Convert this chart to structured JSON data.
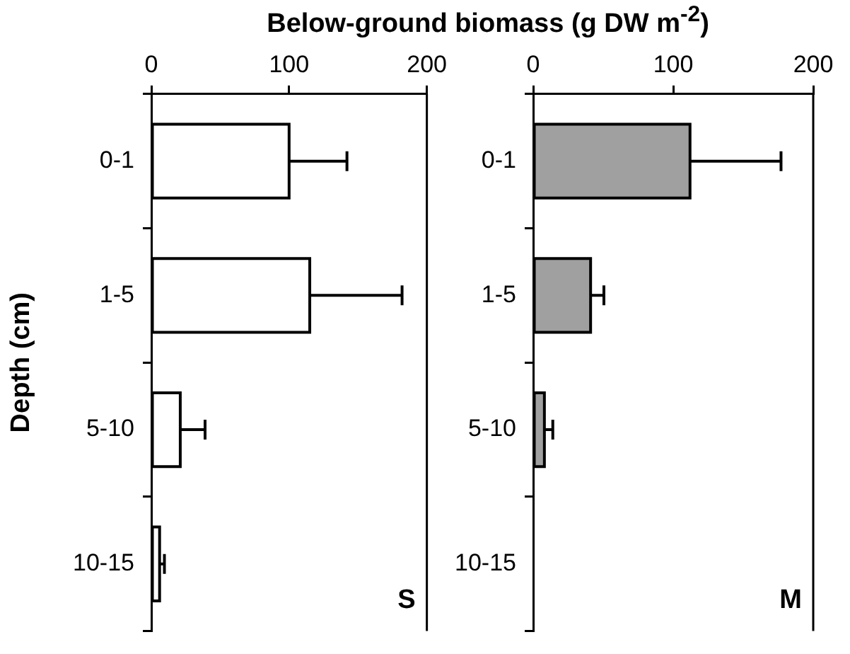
{
  "chart_data": [
    {
      "type": "bar",
      "orientation": "horizontal",
      "xlabel": "Below-ground biomass (g DW m$^{-2}$)",
      "ylabel": "Depth (cm)",
      "categories": [
        "0-1",
        "1-5",
        "5-10",
        "10-15"
      ],
      "values": [
        100,
        115,
        21,
        6
      ],
      "errors": [
        [
          100,
          142
        ],
        [
          115,
          182
        ],
        [
          21,
          39
        ],
        [
          6,
          9.5
        ]
      ],
      "color": "#ffffff",
      "xlim": [
        0,
        200
      ],
      "xticks": [
        0,
        100,
        200
      ],
      "annotations": [
        "S"
      ],
      "legend": false,
      "grid": false
    },
    {
      "type": "bar",
      "orientation": "horizontal",
      "categories": [
        "0-1",
        "1-5",
        "5-10",
        "10-15"
      ],
      "values": [
        112,
        41,
        8,
        0
      ],
      "errors": [
        [
          112,
          177
        ],
        [
          41,
          50.5
        ],
        [
          8,
          14
        ],
        null
      ],
      "color": "#a0a0a0",
      "xlim": [
        0,
        200
      ],
      "xticks": [
        0,
        100,
        200
      ],
      "annotations": [
        "M"
      ],
      "legend": false,
      "grid": false
    }
  ]
}
